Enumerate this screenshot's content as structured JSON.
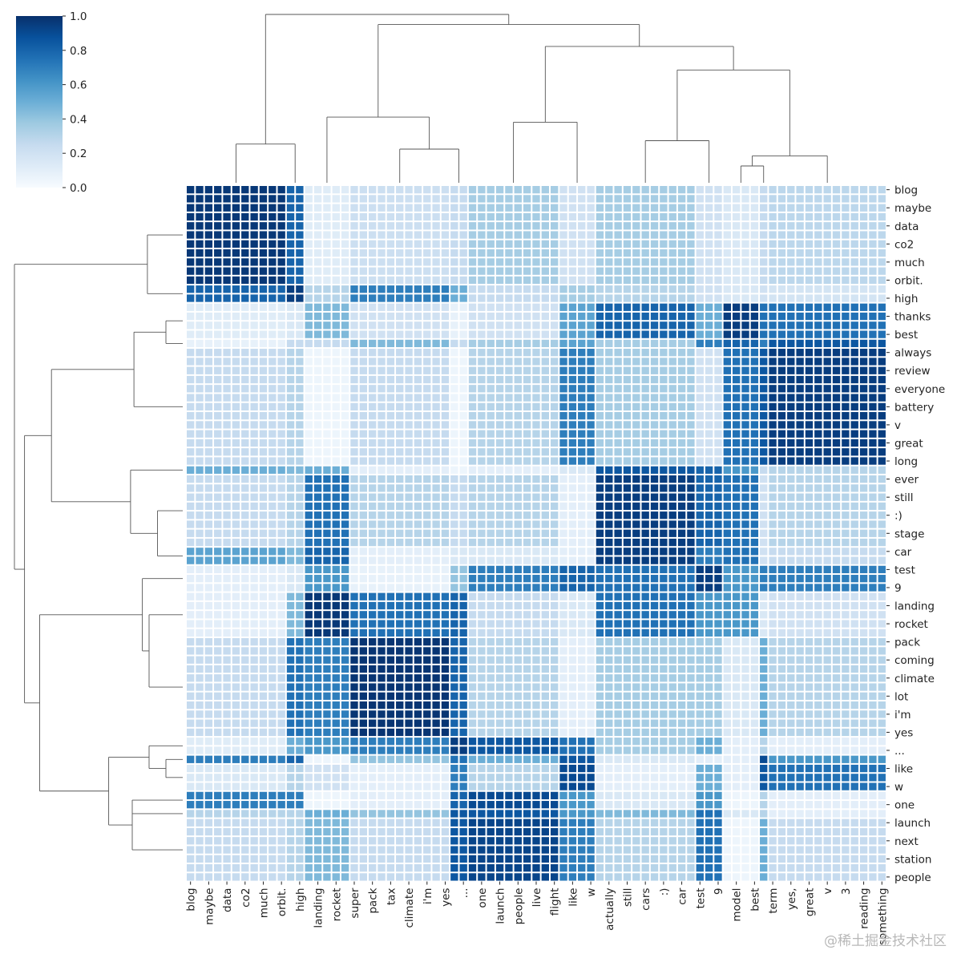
{
  "chart_data": {
    "type": "heatmap",
    "subtype": "clustermap",
    "colormap": "Blues",
    "colormap_stops": [
      "#f7fbff",
      "#deebf7",
      "#c6dbef",
      "#9ecae1",
      "#6baed6",
      "#4292c6",
      "#2171b5",
      "#08519c",
      "#08306b"
    ],
    "value_range": [
      0.0,
      1.0
    ],
    "colorbar": {
      "position": "top-left",
      "ticks": [
        "0.0",
        "0.2",
        "0.4",
        "0.6",
        "0.8",
        "1.0"
      ]
    },
    "row_labels": [
      "blog",
      "maybe",
      "data",
      "co2",
      "much",
      "orbit.",
      "high",
      "thanks",
      "best",
      "always",
      "review",
      "everyone",
      "battery",
      "v",
      "great",
      "long",
      "ever",
      "still",
      ":)",
      "stage",
      "car",
      "test",
      "9",
      "landing",
      "rocket",
      "pack",
      "coming",
      "climate",
      "lot",
      "i'm",
      "yes",
      "...",
      "like",
      "w",
      "one",
      "launch",
      "next",
      "station",
      "people"
    ],
    "col_labels": [
      "blog",
      "maybe",
      "data",
      "co2",
      "much",
      "orbit.",
      "high",
      "landing",
      "rocket",
      "super",
      "pack",
      "tax",
      "climate",
      "i'm",
      "yes",
      "...",
      "one",
      "launch",
      "people",
      "live",
      "flight",
      "like",
      "w",
      "actually",
      "still",
      "cars",
      ":)",
      "car",
      "test",
      "9",
      "model",
      "best",
      "term",
      "yes,",
      "great",
      "v",
      "3",
      "reading",
      "something"
    ],
    "row_groups": [
      {
        "id": "A",
        "range": [
          0,
          10
        ]
      },
      {
        "id": "B",
        "range": [
          11,
          12
        ]
      },
      {
        "id": "C",
        "range": [
          13,
          16
        ]
      },
      {
        "id": "C2",
        "range": [
          17,
          17
        ]
      },
      {
        "id": "D",
        "range": [
          18,
          30
        ]
      },
      {
        "id": "D2",
        "range": [
          31,
          31
        ]
      },
      {
        "id": "E",
        "range": [
          32,
          39
        ]
      },
      {
        "id": "E2",
        "range": [
          40,
          41
        ]
      },
      {
        "id": "F",
        "range": [
          42,
          44
        ]
      },
      {
        "id": "G",
        "range": [
          45,
          49
        ]
      },
      {
        "id": "H",
        "range": [
          50,
          60
        ]
      },
      {
        "id": "I",
        "range": [
          61,
          62
        ]
      },
      {
        "id": "J0",
        "range": [
          63,
          63
        ]
      },
      {
        "id": "J",
        "range": [
          64,
          66
        ]
      },
      {
        "id": "K",
        "range": [
          67,
          68
        ]
      },
      {
        "id": "K2",
        "range": [
          69,
          69
        ]
      },
      {
        "id": "L",
        "range": [
          70,
          76
        ]
      }
    ],
    "col_groups": [
      {
        "id": "a",
        "range": [
          0,
          10
        ]
      },
      {
        "id": "b",
        "range": [
          11,
          12
        ]
      },
      {
        "id": "c",
        "range": [
          13,
          17
        ]
      },
      {
        "id": "d",
        "range": [
          18,
          28
        ]
      },
      {
        "id": "e",
        "range": [
          29,
          30
        ]
      },
      {
        "id": "f",
        "range": [
          31,
          40
        ]
      },
      {
        "id": "g",
        "range": [
          41,
          44
        ]
      },
      {
        "id": "h",
        "range": [
          45,
          55
        ]
      },
      {
        "id": "i",
        "range": [
          56,
          58
        ]
      },
      {
        "id": "j",
        "range": [
          59,
          62
        ]
      },
      {
        "id": "j2",
        "range": [
          63,
          63
        ]
      },
      {
        "id": "k",
        "range": [
          64,
          76
        ]
      }
    ],
    "block_values": {
      "A": [
        0.97,
        0.8,
        0.12,
        0.22,
        0.25,
        0.35,
        0.2,
        0.35,
        0.2,
        0.15,
        0.25,
        0.28
      ],
      "B": [
        0.8,
        0.95,
        0.3,
        0.7,
        0.5,
        0.25,
        0.35,
        0.3,
        0.2,
        0.15,
        0.2,
        0.18
      ],
      "C": [
        0.12,
        0.15,
        0.45,
        0.2,
        0.08,
        0.2,
        0.55,
        0.8,
        0.5,
        0.95,
        0.75,
        0.75
      ],
      "C2": [
        0.08,
        0.25,
        0.25,
        0.45,
        0.25,
        0.35,
        0.55,
        0.35,
        0.7,
        0.8,
        0.7,
        0.85
      ],
      "D": [
        0.25,
        0.3,
        0.05,
        0.25,
        0.05,
        0.3,
        0.7,
        0.35,
        0.2,
        0.75,
        0.85,
        0.95
      ],
      "D2": [
        0.5,
        0.45,
        0.5,
        0.1,
        0.05,
        0.1,
        0.15,
        0.85,
        0.8,
        0.6,
        0.25,
        0.3
      ],
      "E": [
        0.25,
        0.3,
        0.75,
        0.3,
        0.25,
        0.3,
        0.1,
        0.95,
        0.8,
        0.75,
        0.2,
        0.3
      ],
      "E2": [
        0.55,
        0.45,
        0.8,
        0.1,
        0.15,
        0.15,
        0.1,
        0.95,
        0.7,
        0.75,
        0.2,
        0.25
      ],
      "F": [
        0.1,
        0.15,
        0.6,
        0.08,
        0.4,
        0.7,
        0.8,
        0.75,
        0.95,
        0.6,
        0.7,
        0.7
      ],
      "G": [
        0.1,
        0.45,
        0.97,
        0.75,
        0.8,
        0.25,
        0.15,
        0.75,
        0.6,
        0.6,
        0.15,
        0.2
      ],
      "H": [
        0.25,
        0.75,
        0.7,
        0.98,
        0.8,
        0.3,
        0.1,
        0.35,
        0.35,
        0.15,
        0.5,
        0.3
      ],
      "I": [
        0.12,
        0.5,
        0.6,
        0.7,
        0.95,
        0.85,
        0.75,
        0.35,
        0.5,
        0.1,
        0.3,
        0.1
      ],
      "J0": [
        0.7,
        0.8,
        0.05,
        0.4,
        0.75,
        0.5,
        0.85,
        0.15,
        0.1,
        0.1,
        0.9,
        0.6
      ],
      "J": [
        0.15,
        0.3,
        0.2,
        0.1,
        0.7,
        0.3,
        0.9,
        0.1,
        0.5,
        0.1,
        0.85,
        0.75
      ],
      "K": [
        0.7,
        0.7,
        0.05,
        0.1,
        0.8,
        0.9,
        0.6,
        0.15,
        0.6,
        0.05,
        0.3,
        0.1
      ],
      "K2": [
        0.3,
        0.3,
        0.5,
        0.4,
        0.85,
        0.85,
        0.6,
        0.45,
        0.75,
        0.15,
        0.3,
        0.1
      ],
      "L": [
        0.25,
        0.3,
        0.45,
        0.25,
        0.85,
        0.92,
        0.7,
        0.3,
        0.75,
        0.05,
        0.5,
        0.25
      ]
    },
    "col_dendrogram": {
      "h": 1,
      "c": [
        {
          "h": 0.23,
          "c": [
            "a",
            "b"
          ]
        },
        {
          "h": 0.94,
          "c": [
            {
              "h": 0.39,
              "c": [
                "c",
                {
                  "h": 0.2,
                  "c": [
                    "d",
                    "e"
                  ]
                }
              ]
            },
            {
              "h": 0.81,
              "c": [
                {
                  "h": 0.36,
                  "c": [
                    "f",
                    "g"
                  ]
                },
                {
                  "h": 0.67,
                  "c": [
                    {
                      "h": 0.25,
                      "c": [
                        "h",
                        "i"
                      ]
                    },
                    {
                      "h": 0.16,
                      "c": [
                        {
                          "h": 0.1,
                          "c": [
                            "j",
                            "j2"
                          ]
                        },
                        "k"
                      ]
                    }
                  ]
                }
              ]
            }
          ]
        }
      ]
    },
    "row_dendrogram": {
      "h": 1,
      "c": [
        {
          "h": 0.21,
          "c": [
            "A",
            "B"
          ]
        },
        {
          "h": 0.94,
          "c": [
            {
              "h": 0.78,
              "c": [
                {
                  "h": 0.29,
                  "c": [
                    {
                      "h": 0.1,
                      "c": [
                        "C",
                        "C2"
                      ]
                    },
                    "D"
                  ]
                },
                {
                  "h": 0.31,
                  "c": [
                    "D2",
                    {
                      "h": 0.15,
                      "c": [
                        "E",
                        "E2"
                      ]
                    }
                  ]
                }
              ]
            },
            {
              "h": 0.85,
              "c": [
                {
                  "h": 0.24,
                  "c": [
                    "F",
                    {
                      "h": 0.2,
                      "c": [
                        "G",
                        "H"
                      ]
                    }
                  ]
                },
                {
                  "h": 0.44,
                  "c": [
                    {
                      "h": 0.2,
                      "c": [
                        "I",
                        {
                          "h": 0.1,
                          "c": [
                            "J0",
                            "J"
                          ]
                        }
                      ]
                    },
                    {
                      "h": 0.3,
                      "c": [
                        "K",
                        "K2",
                        "L"
                      ]
                    }
                  ]
                }
              ]
            }
          ]
        }
      ]
    }
  },
  "watermark": "@稀土掘金技术社区"
}
